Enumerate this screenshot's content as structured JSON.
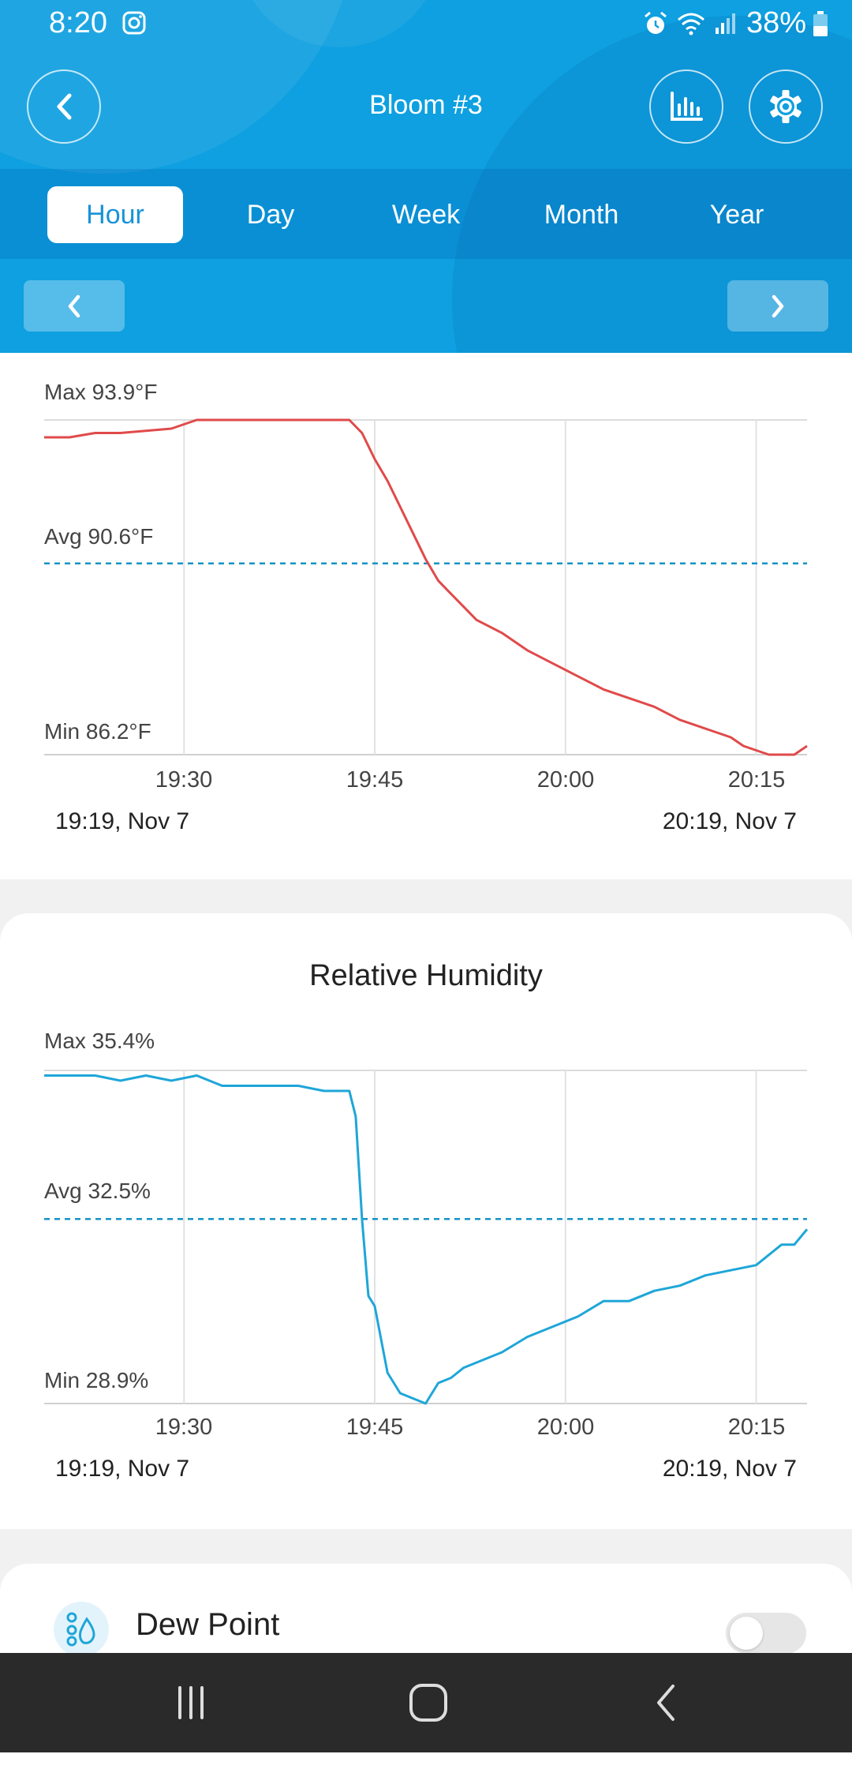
{
  "status": {
    "time": "8:20",
    "battery": "38%"
  },
  "header": {
    "title": "Bloom #3"
  },
  "tabs": [
    {
      "label": "Hour",
      "active": true
    },
    {
      "label": "Day",
      "active": false
    },
    {
      "label": "Week",
      "active": false
    },
    {
      "label": "Month",
      "active": false
    },
    {
      "label": "Year",
      "active": false
    }
  ],
  "colors": {
    "header": "#0ea0e0",
    "temperature_line": "#e04a4a",
    "humidity_line": "#1ea6d8",
    "avg_line": "#1593c4",
    "active_tab_text": "#1793d8"
  },
  "icons": [
    "back-icon",
    "bar-chart-icon",
    "gear-icon",
    "chevron-left-icon",
    "chevron-right-icon",
    "dew-point-icon"
  ],
  "temperature": {
    "max_label": "Max 93.9°F",
    "avg_label": "Avg 90.6°F",
    "min_label": "Min 86.2°F",
    "range_start": "19:19,  Nov 7",
    "range_end": "20:19,  Nov 7"
  },
  "humidity": {
    "title": "Relative Humidity",
    "max_label": "Max 35.4%",
    "avg_label": "Avg 32.5%",
    "min_label": "Min 28.9%",
    "range_start": "19:19,  Nov 7",
    "range_end": "20:19,  Nov 7"
  },
  "dew_point": {
    "label": "Dew Point",
    "enabled": false
  },
  "chart_data": [
    {
      "type": "line",
      "ylabel": "°F",
      "xticks": [
        "19:30",
        "19:45",
        "20:00",
        "20:15"
      ],
      "ylim": [
        86.2,
        93.9
      ],
      "avg": 90.6,
      "x_minutes_after_1919": [
        0,
        2,
        4,
        6,
        10,
        12,
        16,
        20,
        22,
        24,
        25,
        26,
        27,
        28,
        29,
        30,
        31,
        32,
        33,
        34,
        36,
        38,
        40,
        42,
        44,
        46,
        48,
        50,
        52,
        54,
        55,
        56,
        57,
        58,
        59,
        60
      ],
      "series": [
        {
          "values": [
            93.5,
            93.5,
            93.6,
            93.6,
            93.7,
            93.9,
            93.9,
            93.9,
            93.9,
            93.9,
            93.6,
            93.0,
            92.5,
            91.9,
            91.3,
            90.7,
            90.2,
            89.9,
            89.6,
            89.3,
            89.0,
            88.6,
            88.3,
            88.0,
            87.7,
            87.5,
            87.3,
            87.0,
            86.8,
            86.6,
            86.4,
            86.3,
            86.2,
            86.2,
            86.2,
            86.4
          ]
        }
      ]
    },
    {
      "type": "line",
      "title": "Relative Humidity",
      "ylabel": "%",
      "xticks": [
        "19:30",
        "19:45",
        "20:00",
        "20:15"
      ],
      "ylim": [
        28.9,
        35.4
      ],
      "avg": 32.5,
      "x_minutes_after_1919": [
        0,
        4,
        6,
        8,
        10,
        12,
        14,
        18,
        20,
        22,
        24,
        24.5,
        25,
        25.5,
        26,
        27,
        28,
        29,
        30,
        31,
        32,
        33,
        34,
        36,
        38,
        40,
        42,
        44,
        46,
        48,
        50,
        52,
        54,
        56,
        57,
        58,
        59,
        60
      ],
      "series": [
        {
          "values": [
            35.3,
            35.3,
            35.2,
            35.3,
            35.2,
            35.3,
            35.1,
            35.1,
            35.1,
            35.0,
            35.0,
            34.5,
            32.5,
            31.0,
            30.8,
            29.5,
            29.1,
            29.0,
            28.9,
            29.3,
            29.4,
            29.6,
            29.7,
            29.9,
            30.2,
            30.4,
            30.6,
            30.9,
            30.9,
            31.1,
            31.2,
            31.4,
            31.5,
            31.6,
            31.8,
            32.0,
            32.0,
            32.3
          ]
        }
      ]
    }
  ]
}
